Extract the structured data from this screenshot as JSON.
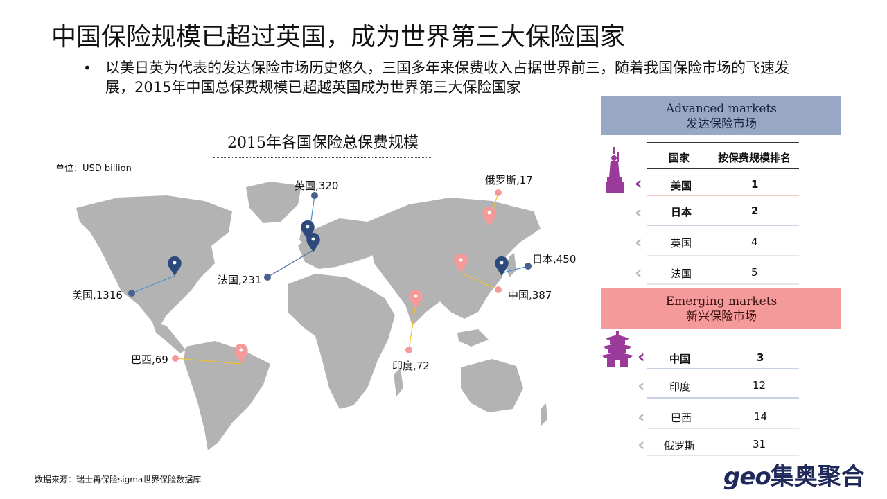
{
  "title": "中国保险规模已超过英国，成为世界第三大保险国家",
  "bullet": "以美日英为代表的发达保险市场历史悠久，三国多年来保费收入占据世界前三，随着我国保险市场的飞速发展，2015年中国总保费规模已超越英国成为世界第三大保险国家",
  "bullet_symbol": "•",
  "map": {
    "title": "2015年各国保险总保费规模",
    "unit": "单位：USD billion",
    "labels": {
      "uk": "英国,320",
      "russia": "俄罗斯,17",
      "japan": "日本,450",
      "china": "中国,387",
      "france": "法国,231",
      "usa": "美国,1316",
      "brazil": "巴西,69",
      "india": "印度,72"
    },
    "colors": {
      "advanced": "#2e4a7d",
      "emerging": "#f59a9a",
      "land": "#b3b3b3"
    }
  },
  "source": "数据来源：瑞士再保险sigma世界保险数据库",
  "advanced": {
    "title_en": "Advanced markets",
    "title_cn": "发达保险市场",
    "col_country": "国家",
    "col_rank": "按保费规模排名",
    "rows": [
      {
        "country": "美国",
        "rank": "1"
      },
      {
        "country": "日本",
        "rank": "2"
      },
      {
        "country": "英国",
        "rank": "4"
      },
      {
        "country": "法国",
        "rank": "5"
      }
    ]
  },
  "emerging": {
    "title_en": "Emerging markets",
    "title_cn": "新兴保险市场",
    "rows": [
      {
        "country": "中国",
        "rank": "3"
      },
      {
        "country": "印度",
        "rank": "12"
      },
      {
        "country": "巴西",
        "rank": "14"
      },
      {
        "country": "俄罗斯",
        "rank": "31"
      }
    ]
  },
  "brand": {
    "latin": "geo",
    "cn": "集奥聚合"
  },
  "icons": {
    "advanced": "statue-of-liberty-icon",
    "emerging": "pagoda-icon",
    "chevron": "chevron-left-icon"
  }
}
